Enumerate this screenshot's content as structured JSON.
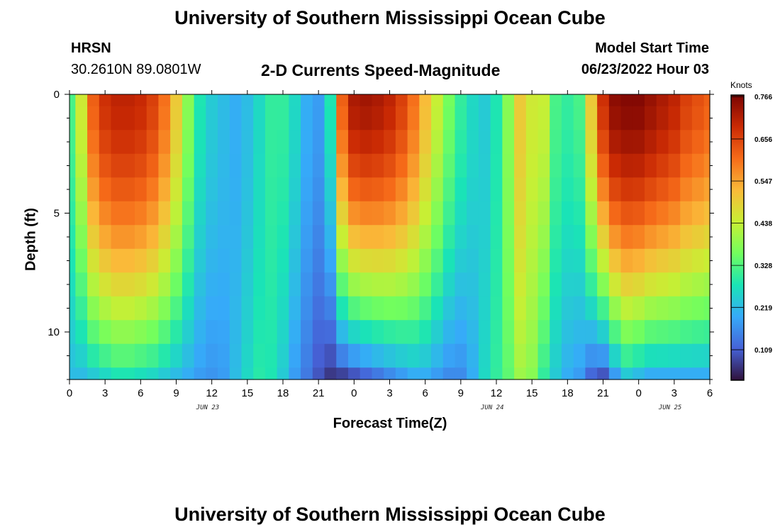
{
  "header": {
    "title": "University of Southern Mississippi Ocean Cube",
    "station": "HRSN",
    "coords": "30.2610N  89.0801W",
    "subtitle": "2-D Currents Speed-Magnitude",
    "model_start_label": "Model Start Time",
    "model_start_value": "06/23/2022 Hour 03"
  },
  "footer": {
    "title": "University of Southern Mississippi Ocean Cube"
  },
  "chart_data": {
    "type": "heatmap",
    "xlabel": "Forecast Time(Z)",
    "ylabel": "Depth (ft)",
    "colorbar_label": "Knots",
    "x_range_hours": [
      0,
      54
    ],
    "y_range_ft": [
      0,
      12
    ],
    "x_ticks": [
      "0",
      "3",
      "6",
      "9",
      "12",
      "15",
      "18",
      "21",
      "0",
      "3",
      "6",
      "9",
      "12",
      "15",
      "18",
      "21",
      "0",
      "3",
      "6"
    ],
    "y_ticks": [
      "0",
      "5",
      "10"
    ],
    "date_labels": [
      {
        "text": "JUN 23",
        "hour": 12
      },
      {
        "text": "JUN 24",
        "hour": 36
      },
      {
        "text": "JUN 25",
        "hour": 51
      }
    ],
    "colorbar_ticks": [
      "0.766",
      "0.656",
      "0.547",
      "0.438",
      "0.328",
      "0.219",
      "0.109"
    ],
    "colorbar_range": [
      0.03,
      0.77
    ],
    "colors": [
      "#30123b",
      "#4662d7",
      "#36aaf9",
      "#1ae4b6",
      "#72fe5e",
      "#c8ef34",
      "#faba39",
      "#f66b19",
      "#ca2a04",
      "#7a0403"
    ],
    "depth_levels_ft": [
      0,
      1,
      2,
      3,
      4,
      5,
      6,
      7,
      8,
      9,
      10,
      11,
      12
    ],
    "profiles": {
      "hours": [
        0,
        1,
        2,
        3,
        4,
        5,
        6,
        7,
        8,
        9,
        10,
        11,
        12,
        13,
        14,
        15,
        16,
        17,
        18,
        19,
        20,
        21,
        22,
        23,
        24,
        25,
        26,
        27,
        28,
        29,
        30,
        31,
        32,
        33,
        34,
        35,
        36,
        37,
        38,
        39,
        40,
        41,
        42,
        43,
        44,
        45,
        46,
        47,
        48,
        49,
        50,
        51,
        52,
        53,
        54
      ],
      "surface_knots": [
        0.32,
        0.45,
        0.62,
        0.68,
        0.7,
        0.7,
        0.69,
        0.66,
        0.6,
        0.5,
        0.38,
        0.28,
        0.24,
        0.22,
        0.2,
        0.22,
        0.26,
        0.3,
        0.3,
        0.26,
        0.2,
        0.18,
        0.28,
        0.62,
        0.72,
        0.73,
        0.72,
        0.7,
        0.66,
        0.6,
        0.52,
        0.44,
        0.36,
        0.3,
        0.26,
        0.24,
        0.28,
        0.38,
        0.5,
        0.45,
        0.44,
        0.32,
        0.3,
        0.32,
        0.5,
        0.68,
        0.75,
        0.76,
        0.76,
        0.74,
        0.72,
        0.7,
        0.66,
        0.64,
        0.62
      ],
      "bottom_knots": [
        0.22,
        0.22,
        0.24,
        0.26,
        0.28,
        0.28,
        0.27,
        0.26,
        0.24,
        0.22,
        0.2,
        0.18,
        0.17,
        0.18,
        0.22,
        0.26,
        0.29,
        0.28,
        0.24,
        0.18,
        0.14,
        0.1,
        0.07,
        0.08,
        0.1,
        0.12,
        0.14,
        0.16,
        0.18,
        0.2,
        0.2,
        0.18,
        0.16,
        0.16,
        0.2,
        0.26,
        0.3,
        0.34,
        0.4,
        0.38,
        0.3,
        0.24,
        0.2,
        0.18,
        0.12,
        0.1,
        0.18,
        0.24,
        0.22,
        0.2,
        0.2,
        0.2,
        0.2,
        0.2,
        0.2
      ]
    }
  }
}
